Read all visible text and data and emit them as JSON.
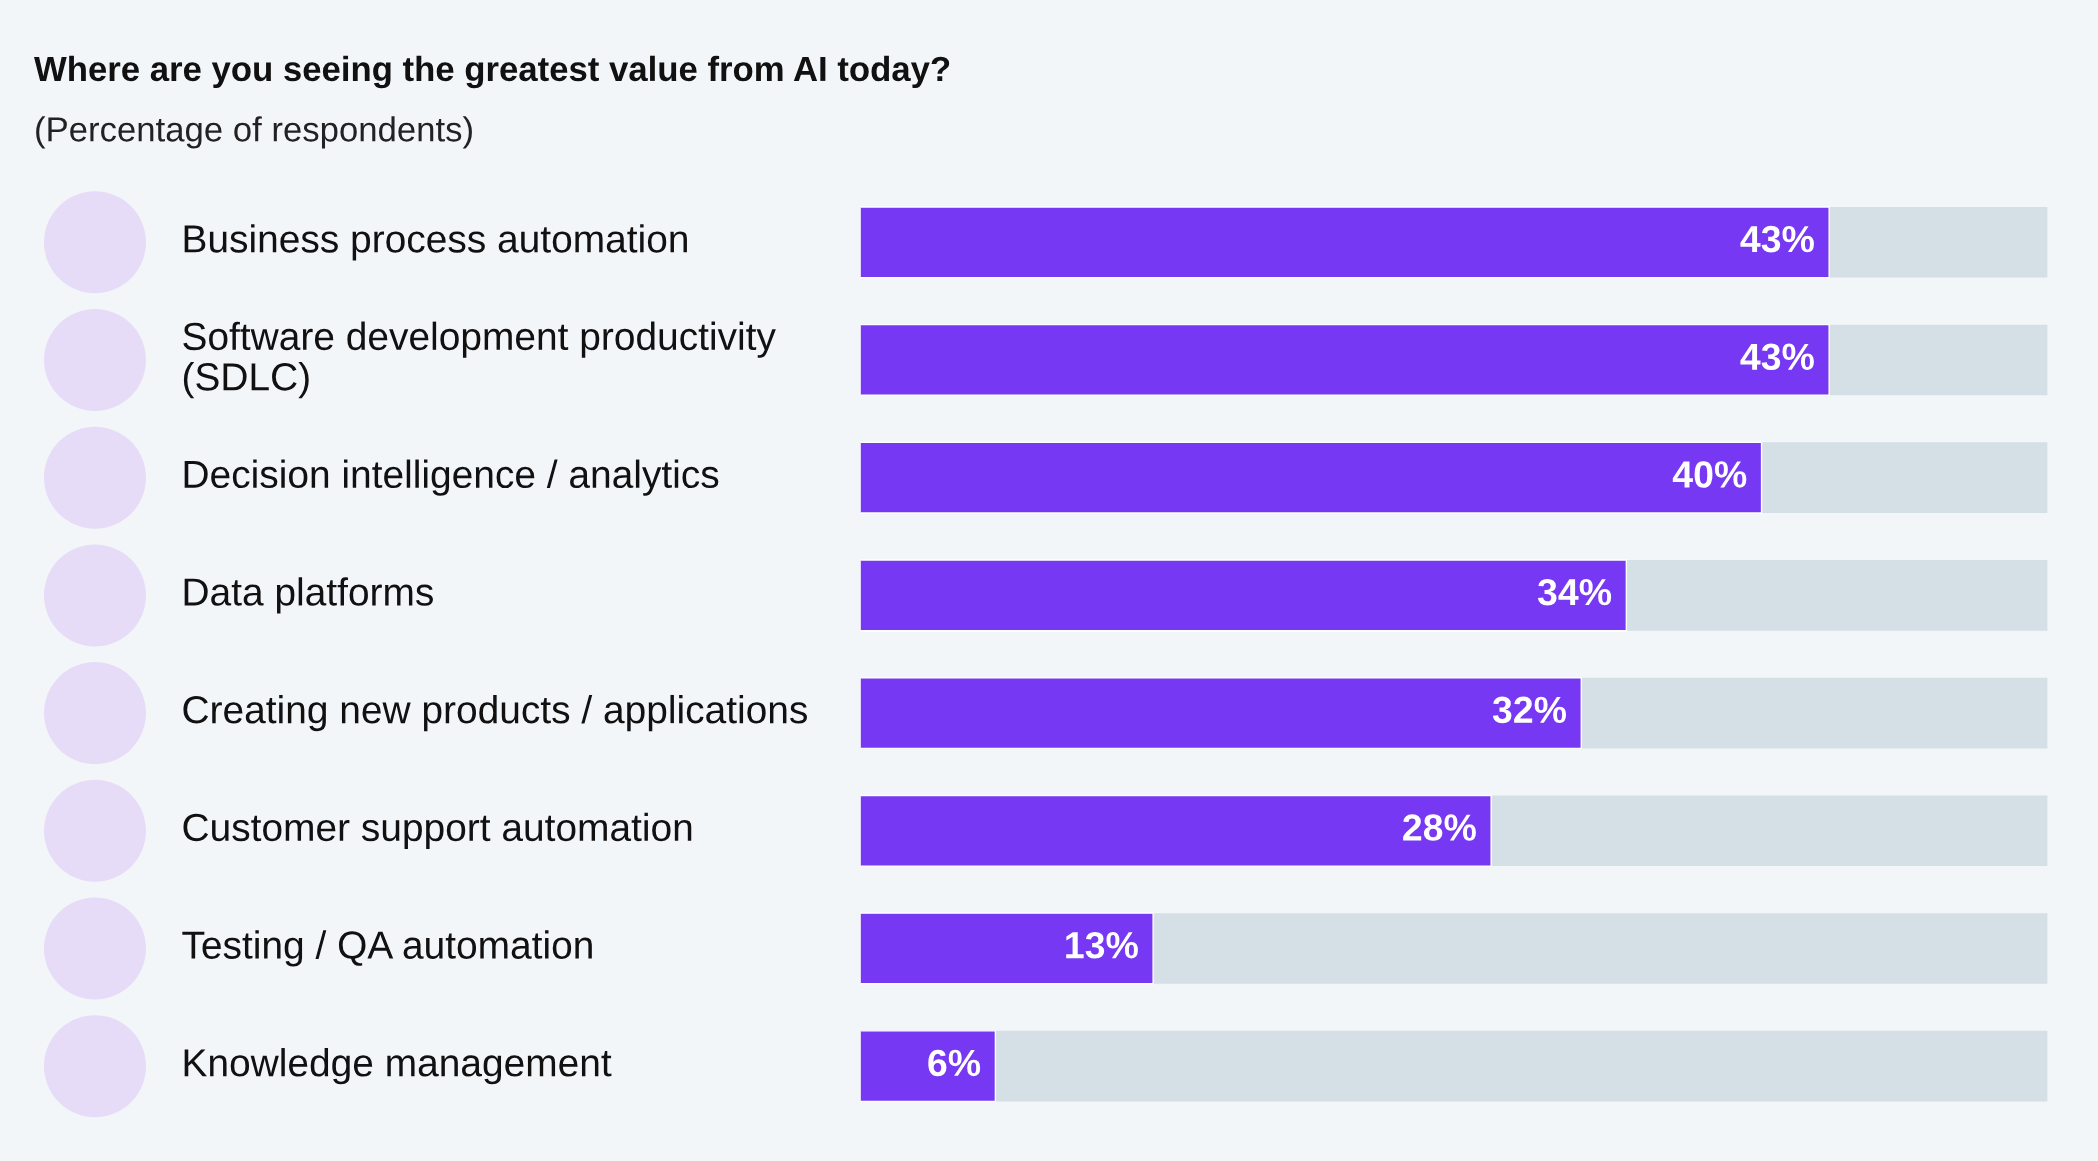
{
  "chart_data": {
    "type": "bar",
    "orientation": "horizontal",
    "title": "Where are you seeing the greatest value from AI today?",
    "subtitle": "(Percentage of respondents)",
    "categories": [
      "Business process automation",
      "Software development productivity (SDLC)",
      "Decision intelligence / analytics",
      "Data platforms",
      "Creating new products / applications",
      "Customer support automation",
      "Testing / QA automation",
      "Knowledge management"
    ],
    "values": [
      43,
      43,
      40,
      34,
      32,
      28,
      13,
      6
    ],
    "value_labels": [
      "43%",
      "43%",
      "40%",
      "34%",
      "32%",
      "28%",
      "13%",
      "6%"
    ],
    "color": "#7638f2"
  }
}
